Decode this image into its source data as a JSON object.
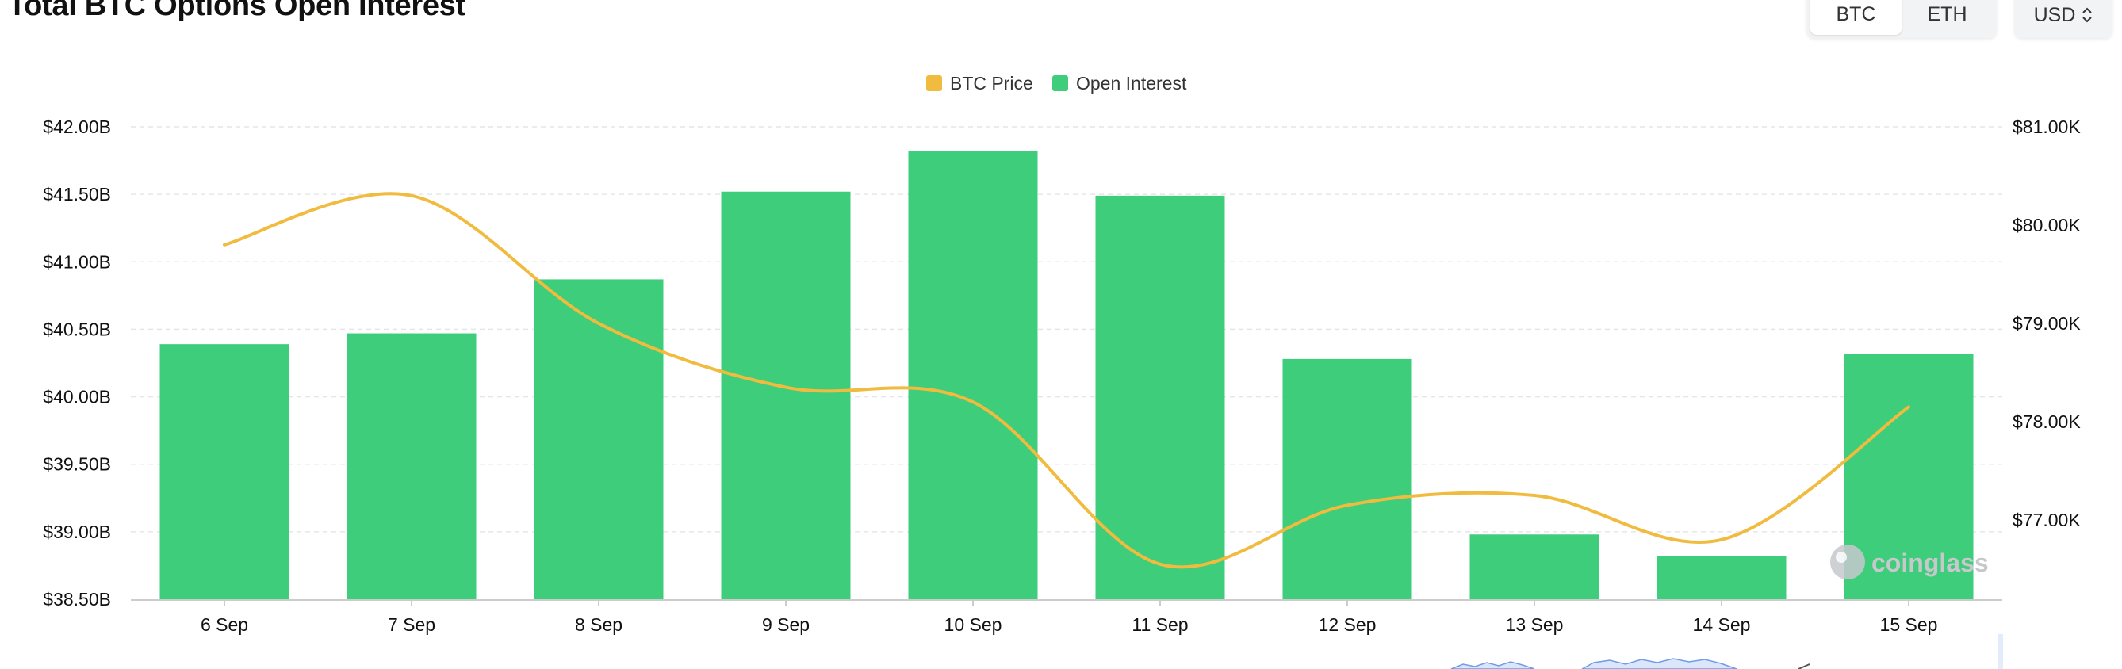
{
  "header": {
    "title": "Total BTC Options Open Interest",
    "asset_tabs": [
      {
        "label": "BTC",
        "active": true
      },
      {
        "label": "ETH",
        "active": false
      }
    ],
    "currency": {
      "label": "USD",
      "icon": "chevron-updown-icon"
    }
  },
  "watermark": {
    "text": "coinglass",
    "icon": "coinglass-logo-icon"
  },
  "colors": {
    "bar": "#3ecd7a",
    "line": "#f0bb3f",
    "grid": "#e6e6e6"
  },
  "chart_data": {
    "type": "bar",
    "title": "Total BTC Options Open Interest",
    "categories": [
      "6 Sep",
      "7 Sep",
      "8 Sep",
      "9 Sep",
      "10 Sep",
      "11 Sep",
      "12 Sep",
      "13 Sep",
      "14 Sep",
      "15 Sep"
    ],
    "legend": {
      "position": "top-center",
      "items": [
        "BTC Price",
        "Open Interest"
      ]
    },
    "grid": true,
    "series": [
      {
        "name": "Open Interest",
        "type": "bar",
        "axis": "left",
        "values": [
          40.39,
          40.47,
          40.87,
          41.52,
          41.82,
          41.49,
          40.28,
          38.98,
          38.82,
          40.32
        ]
      },
      {
        "name": "BTC Price",
        "type": "line",
        "axis": "right",
        "values": [
          79.8,
          80.3,
          79.0,
          78.35,
          78.2,
          76.55,
          77.15,
          77.25,
          76.8,
          78.15
        ]
      }
    ],
    "y_left": {
      "ylim": [
        38.5,
        42.0
      ],
      "ticks": [
        "$42.00B",
        "$41.50B",
        "$41.00B",
        "$40.50B",
        "$40.00B",
        "$39.50B",
        "$39.00B",
        "$38.50B"
      ]
    },
    "y_right": {
      "ylim": [
        76.15,
        81.0
      ],
      "ticks": [
        "$81.00K",
        "$80.00K",
        "$79.00K",
        "$78.00K",
        "$77.00K"
      ]
    }
  }
}
